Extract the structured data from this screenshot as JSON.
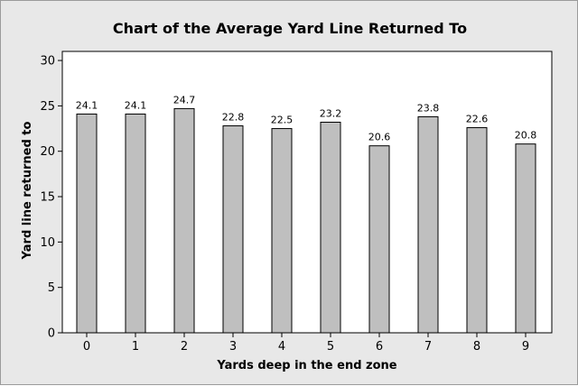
{
  "chart_data": {
    "type": "bar",
    "title": "Chart of the Average Yard Line Returned To",
    "xlabel": "Yards deep in the end zone",
    "ylabel": "Yard line returned to",
    "categories": [
      "0",
      "1",
      "2",
      "3",
      "4",
      "5",
      "6",
      "7",
      "8",
      "9"
    ],
    "values": [
      24.1,
      24.1,
      24.7,
      22.8,
      22.5,
      23.2,
      20.6,
      23.8,
      22.6,
      20.8
    ],
    "data_labels": [
      "24.1",
      "24.1",
      "24.7",
      "22.8",
      "22.5",
      "23.2",
      "20.6",
      "23.8",
      "22.6",
      "20.8"
    ],
    "ylim": [
      0,
      31
    ],
    "yticks": [
      "0",
      "5",
      "10",
      "15",
      "20",
      "25",
      "30"
    ],
    "grid": false,
    "legend": "none",
    "colors": {
      "background": "#e8e8e8",
      "plot_area": "#ffffff",
      "bar_fill": "#bfbfbf",
      "bar_stroke": "#000000"
    }
  }
}
